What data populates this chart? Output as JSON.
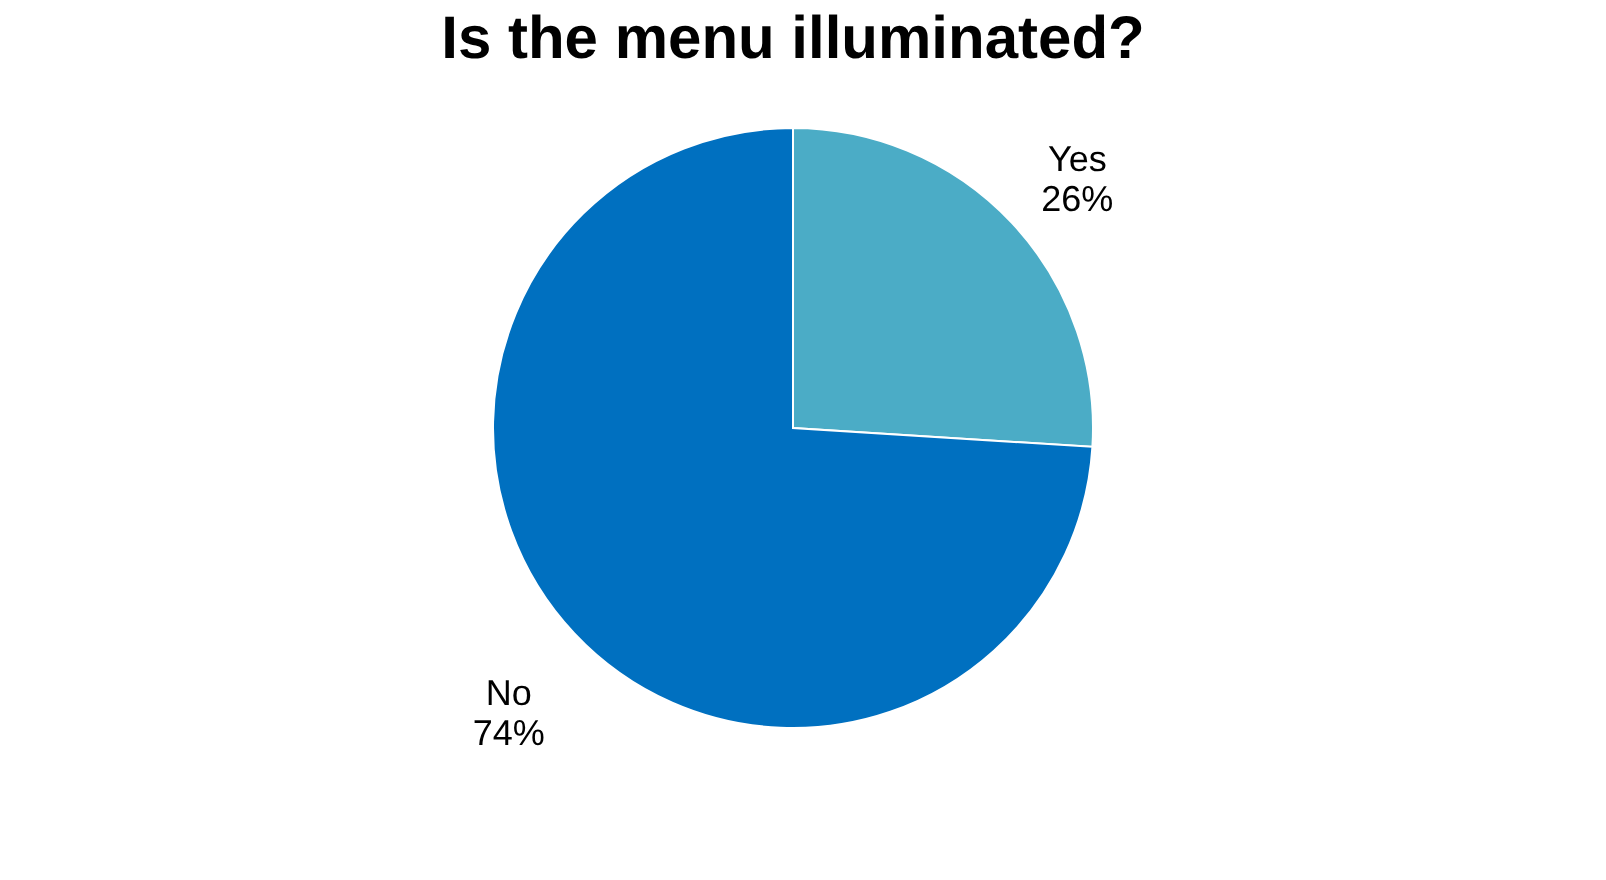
{
  "chart_data": {
    "type": "pie",
    "title": "Is the menu illuminated?",
    "categories": [
      "Yes",
      "No"
    ],
    "values": [
      26,
      74
    ],
    "colors": [
      "#4bacc6",
      "#0070c0"
    ],
    "value_labels": [
      "26%",
      "74%"
    ],
    "legend": false
  }
}
